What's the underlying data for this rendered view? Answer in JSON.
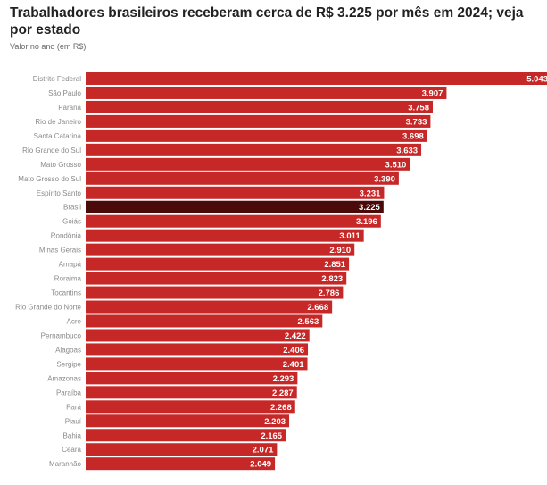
{
  "header": {
    "title": "Trabalhadores brasileiros receberam cerca de R$ 3.225 por mês em 2024; veja por estado",
    "subtitle": "Valor no ano (em R$)"
  },
  "chart_data": {
    "type": "bar",
    "orientation": "horizontal",
    "title": "Trabalhadores brasileiros receberam cerca de R$ 3.225 por mês em 2024; veja por estado",
    "subtitle": "Valor no ano (em R$)",
    "categories": [
      "Distrito Federal",
      "São Paulo",
      "Paraná",
      "Rio de Janeiro",
      "Santa Catarina",
      "Rio Grande do Sul",
      "Mato Grosso",
      "Mato Grosso do Sul",
      "Espírito Santo",
      "Brasil",
      "Goiás",
      "Rondônia",
      "Minas Gerais",
      "Amapá",
      "Roraima",
      "Tocantins",
      "Rio Grande do Norte",
      "Acre",
      "Pernambuco",
      "Alagoas",
      "Sergipe",
      "Amazonas",
      "Paraíba",
      "Pará",
      "Piauí",
      "Bahia",
      "Ceará",
      "Maranhão"
    ],
    "values": [
      5043,
      3907,
      3758,
      3733,
      3698,
      3633,
      3510,
      3390,
      3231,
      3225,
      3196,
      3011,
      2910,
      2851,
      2823,
      2786,
      2668,
      2563,
      2422,
      2406,
      2401,
      2293,
      2287,
      2268,
      2203,
      2165,
      2071,
      2049
    ],
    "value_labels": [
      "5.043",
      "3.907",
      "3.758",
      "3.733",
      "3.698",
      "3.633",
      "3.510",
      "3.390",
      "3.231",
      "3.225",
      "3.196",
      "3.011",
      "2.910",
      "2.851",
      "2.823",
      "2.786",
      "2.668",
      "2.563",
      "2.422",
      "2.406",
      "2.401",
      "2.293",
      "2.287",
      "2.268",
      "2.203",
      "2.165",
      "2.071",
      "2.049"
    ],
    "highlight": "Brasil",
    "colors": {
      "bar": "#c62828",
      "highlight": "#4a0a0a",
      "label": "#ffffff"
    },
    "xlim": [
      0,
      5043
    ],
    "grid": false
  }
}
